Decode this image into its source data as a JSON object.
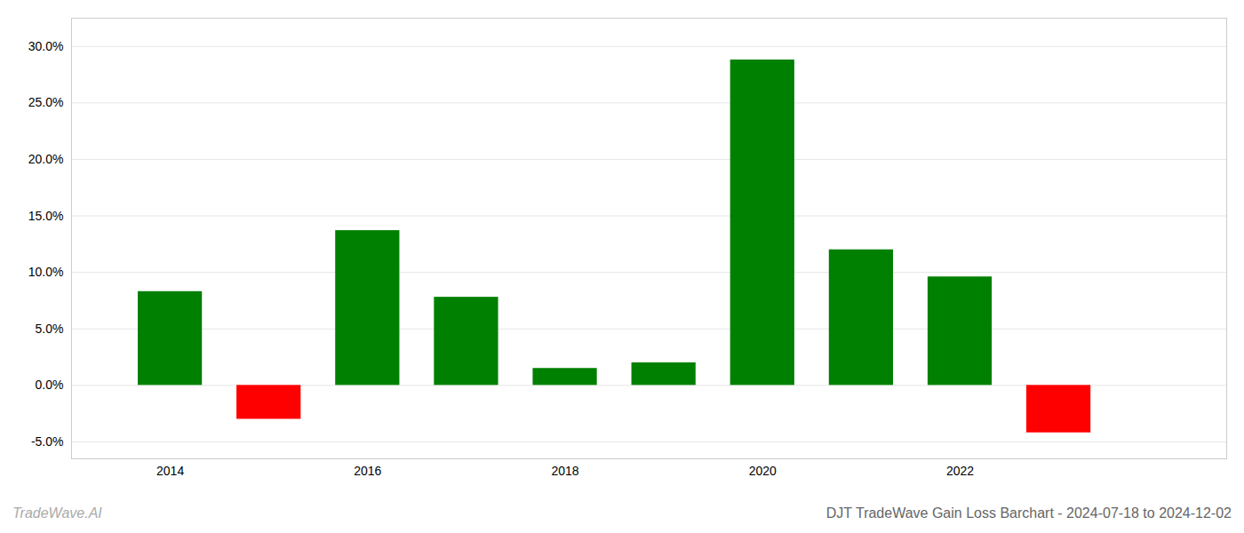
{
  "chart_data": {
    "type": "bar",
    "title": "DJT TradeWave Gain Loss Barchart - 2024-07-18 to 2024-12-02",
    "annotations": [
      "TradeWave.AI"
    ],
    "x": [
      2014,
      2015,
      2016,
      2017,
      2018,
      2019,
      2020,
      2021,
      2022,
      2023
    ],
    "values": [
      8.3,
      -3.0,
      13.7,
      7.8,
      1.5,
      2.0,
      28.8,
      12.0,
      9.6,
      -4.2
    ],
    "colors": [
      "#008000",
      "#ff0000",
      "#008000",
      "#008000",
      "#008000",
      "#008000",
      "#008000",
      "#008000",
      "#008000",
      "#ff0000"
    ],
    "xlim": [
      2013.0,
      2024.7
    ],
    "xticks": [
      2014,
      2016,
      2018,
      2020,
      2022
    ],
    "ylim": [
      -6.5,
      32.5
    ],
    "yticks": [
      {
        "value": -5.0,
        "label": "-5.0%"
      },
      {
        "value": 0.0,
        "label": "0.0%"
      },
      {
        "value": 5.0,
        "label": "5.0%"
      },
      {
        "value": 10.0,
        "label": "10.0%"
      },
      {
        "value": 15.0,
        "label": "15.0%"
      },
      {
        "value": 20.0,
        "label": "20.0%"
      },
      {
        "value": 25.0,
        "label": "25.0%"
      },
      {
        "value": 30.0,
        "label": "30.0%"
      }
    ],
    "grid": "y"
  }
}
